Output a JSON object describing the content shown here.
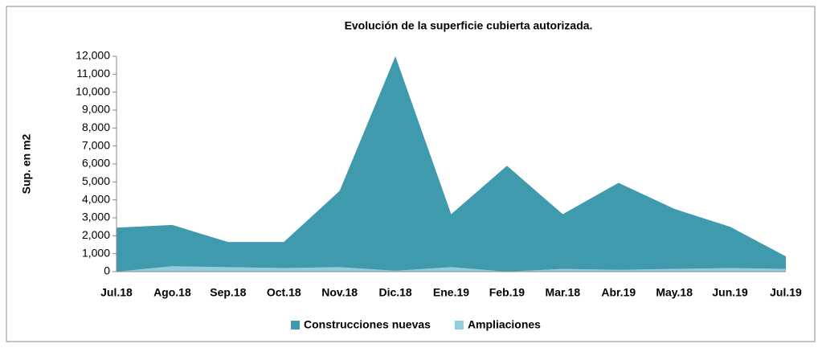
{
  "chart_data": {
    "type": "stacked_area",
    "title": "Evolución de la superficie cubierta autorizada.",
    "y_label": "Sup. en m2",
    "categories": [
      "Jul.18",
      "Ago.18",
      "Sep.18",
      "Oct.18",
      "Nov.18",
      "Dic.18",
      "Ene.19",
      "Feb.19",
      "Mar.18",
      "Abr.19",
      "May.18",
      "Jun.19",
      "Jul.19"
    ],
    "series": [
      {
        "name": "Construcciones nuevas",
        "color": "#3f9aae",
        "values": [
          2450,
          2300,
          1400,
          1450,
          4250,
          11950,
          2950,
          5900,
          3050,
          4850,
          3350,
          2300,
          700
        ]
      },
      {
        "name": "Ampliaciones",
        "color": "#93cddd",
        "values": [
          0,
          300,
          250,
          200,
          250,
          50,
          250,
          0,
          150,
          100,
          150,
          200,
          150
        ]
      }
    ],
    "ylim": [
      0,
      12000
    ],
    "yticks": [
      0,
      {
        "value": 1000,
        "label": "1,000"
      },
      {
        "value": 2000,
        "label": "2,000"
      },
      {
        "value": 3000,
        "label": "3,000"
      },
      {
        "value": 4000,
        "label": "4,000"
      },
      {
        "value": 5000,
        "label": "5,000"
      },
      {
        "value": 6000,
        "label": "6,000"
      },
      {
        "value": 7000,
        "label": "7,000"
      },
      {
        "value": 8000,
        "label": "8,000"
      },
      {
        "value": 9000,
        "label": "9,000"
      },
      {
        "value": 10000,
        "label": "10,000"
      },
      {
        "value": 11000,
        "label": "11,000"
      },
      {
        "value": 12000,
        "label": "12,000"
      }
    ],
    "legend": "bottom"
  }
}
